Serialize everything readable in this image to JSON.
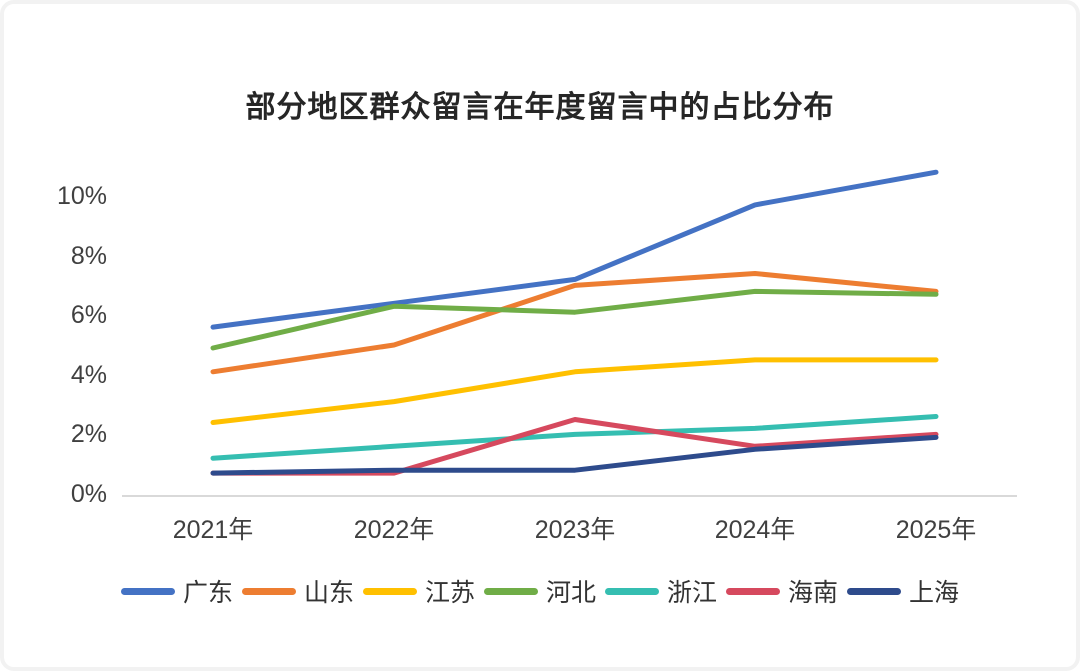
{
  "title": "部分地区群众留言在年度留言中的占比分布",
  "axis_color": "#d9d9d9",
  "text_color": "#404040",
  "chart_data": {
    "type": "line",
    "title": "部分地区群众留言在年度留言中的占比分布",
    "categories": [
      "2021年",
      "2022年",
      "2023年",
      "2024年",
      "2025年"
    ],
    "series": [
      {
        "name": "广东",
        "color": "#4472C4",
        "values": [
          5.6,
          6.4,
          7.2,
          9.7,
          10.8
        ]
      },
      {
        "name": "山东",
        "color": "#ED7D31",
        "values": [
          4.1,
          5.0,
          7.0,
          7.4,
          6.8
        ]
      },
      {
        "name": "江苏",
        "color": "#FFC000",
        "values": [
          2.4,
          3.1,
          4.1,
          4.5,
          4.5
        ]
      },
      {
        "name": "河北",
        "color": "#70AD47",
        "values": [
          4.9,
          6.3,
          6.1,
          6.8,
          6.7
        ]
      },
      {
        "name": "浙江",
        "color": "#35BEB1",
        "values": [
          1.2,
          1.6,
          2.0,
          2.2,
          2.6
        ]
      },
      {
        "name": "海南",
        "color": "#D6495E",
        "values": [
          0.7,
          0.7,
          2.5,
          1.6,
          2.0
        ]
      },
      {
        "name": "上海",
        "color": "#2E4B8C",
        "values": [
          0.7,
          0.8,
          0.8,
          1.5,
          1.9
        ]
      }
    ],
    "xlabel": "",
    "ylabel": "",
    "y_ticks": [
      "0%",
      "2%",
      "4%",
      "6%",
      "8%",
      "10%"
    ],
    "y_tick_values": [
      0,
      2,
      4,
      6,
      8,
      10
    ],
    "ylim": [
      0,
      11
    ],
    "grid": false,
    "legend_position": "bottom"
  }
}
